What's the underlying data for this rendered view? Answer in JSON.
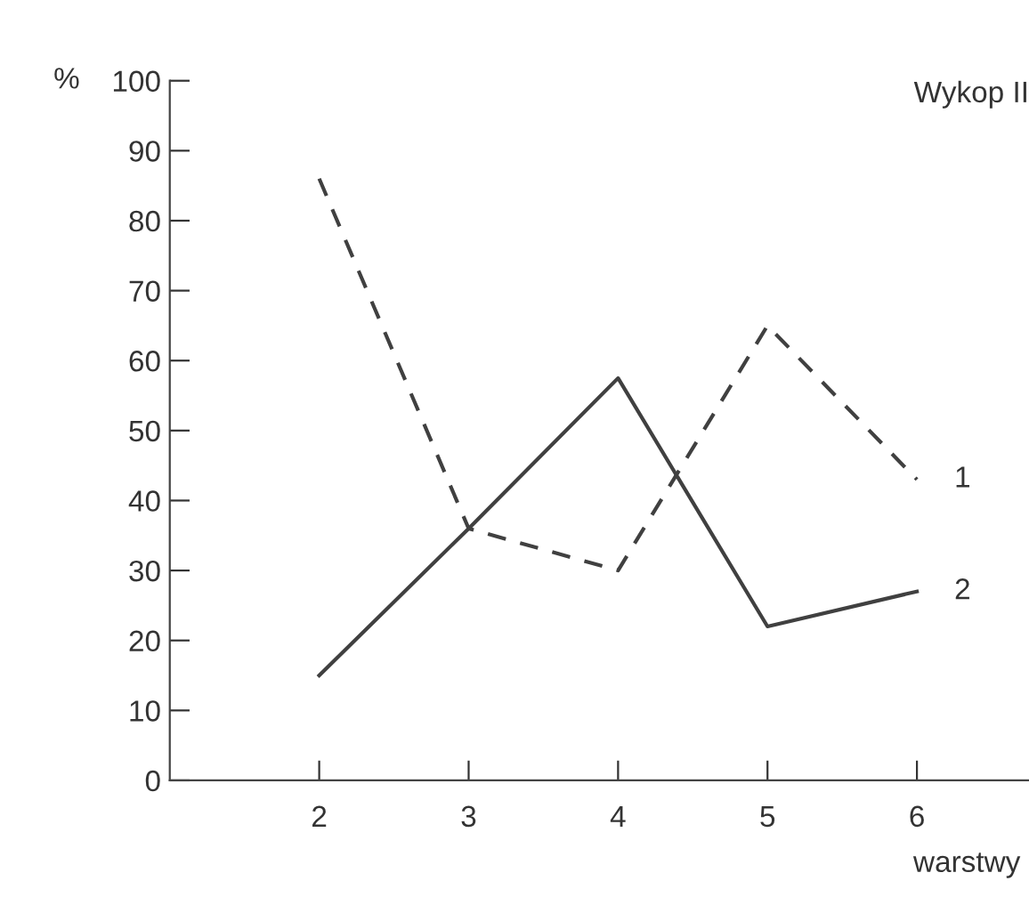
{
  "chart_data": {
    "type": "line",
    "title": "Wykop II",
    "xlabel": "warstwy",
    "ylabel": "%",
    "x": [
      2,
      3,
      4,
      5,
      6
    ],
    "series": [
      {
        "name": "1",
        "color": "#404040",
        "values": [
          86,
          36,
          30,
          65,
          43
        ],
        "line_style": "dashed"
      },
      {
        "name": "2",
        "color": "#404040",
        "values": [
          15,
          36,
          57.5,
          22,
          27
        ],
        "line_style": "solid"
      }
    ],
    "xlim": [
      1,
      6.75
    ],
    "ylim": [
      0,
      100
    ],
    "xticks": [
      2,
      3,
      4,
      5,
      6
    ],
    "yticks": [
      0,
      10,
      20,
      30,
      40,
      50,
      60,
      70,
      80,
      90,
      100
    ],
    "grid": false,
    "legend": false,
    "marker": "none"
  }
}
